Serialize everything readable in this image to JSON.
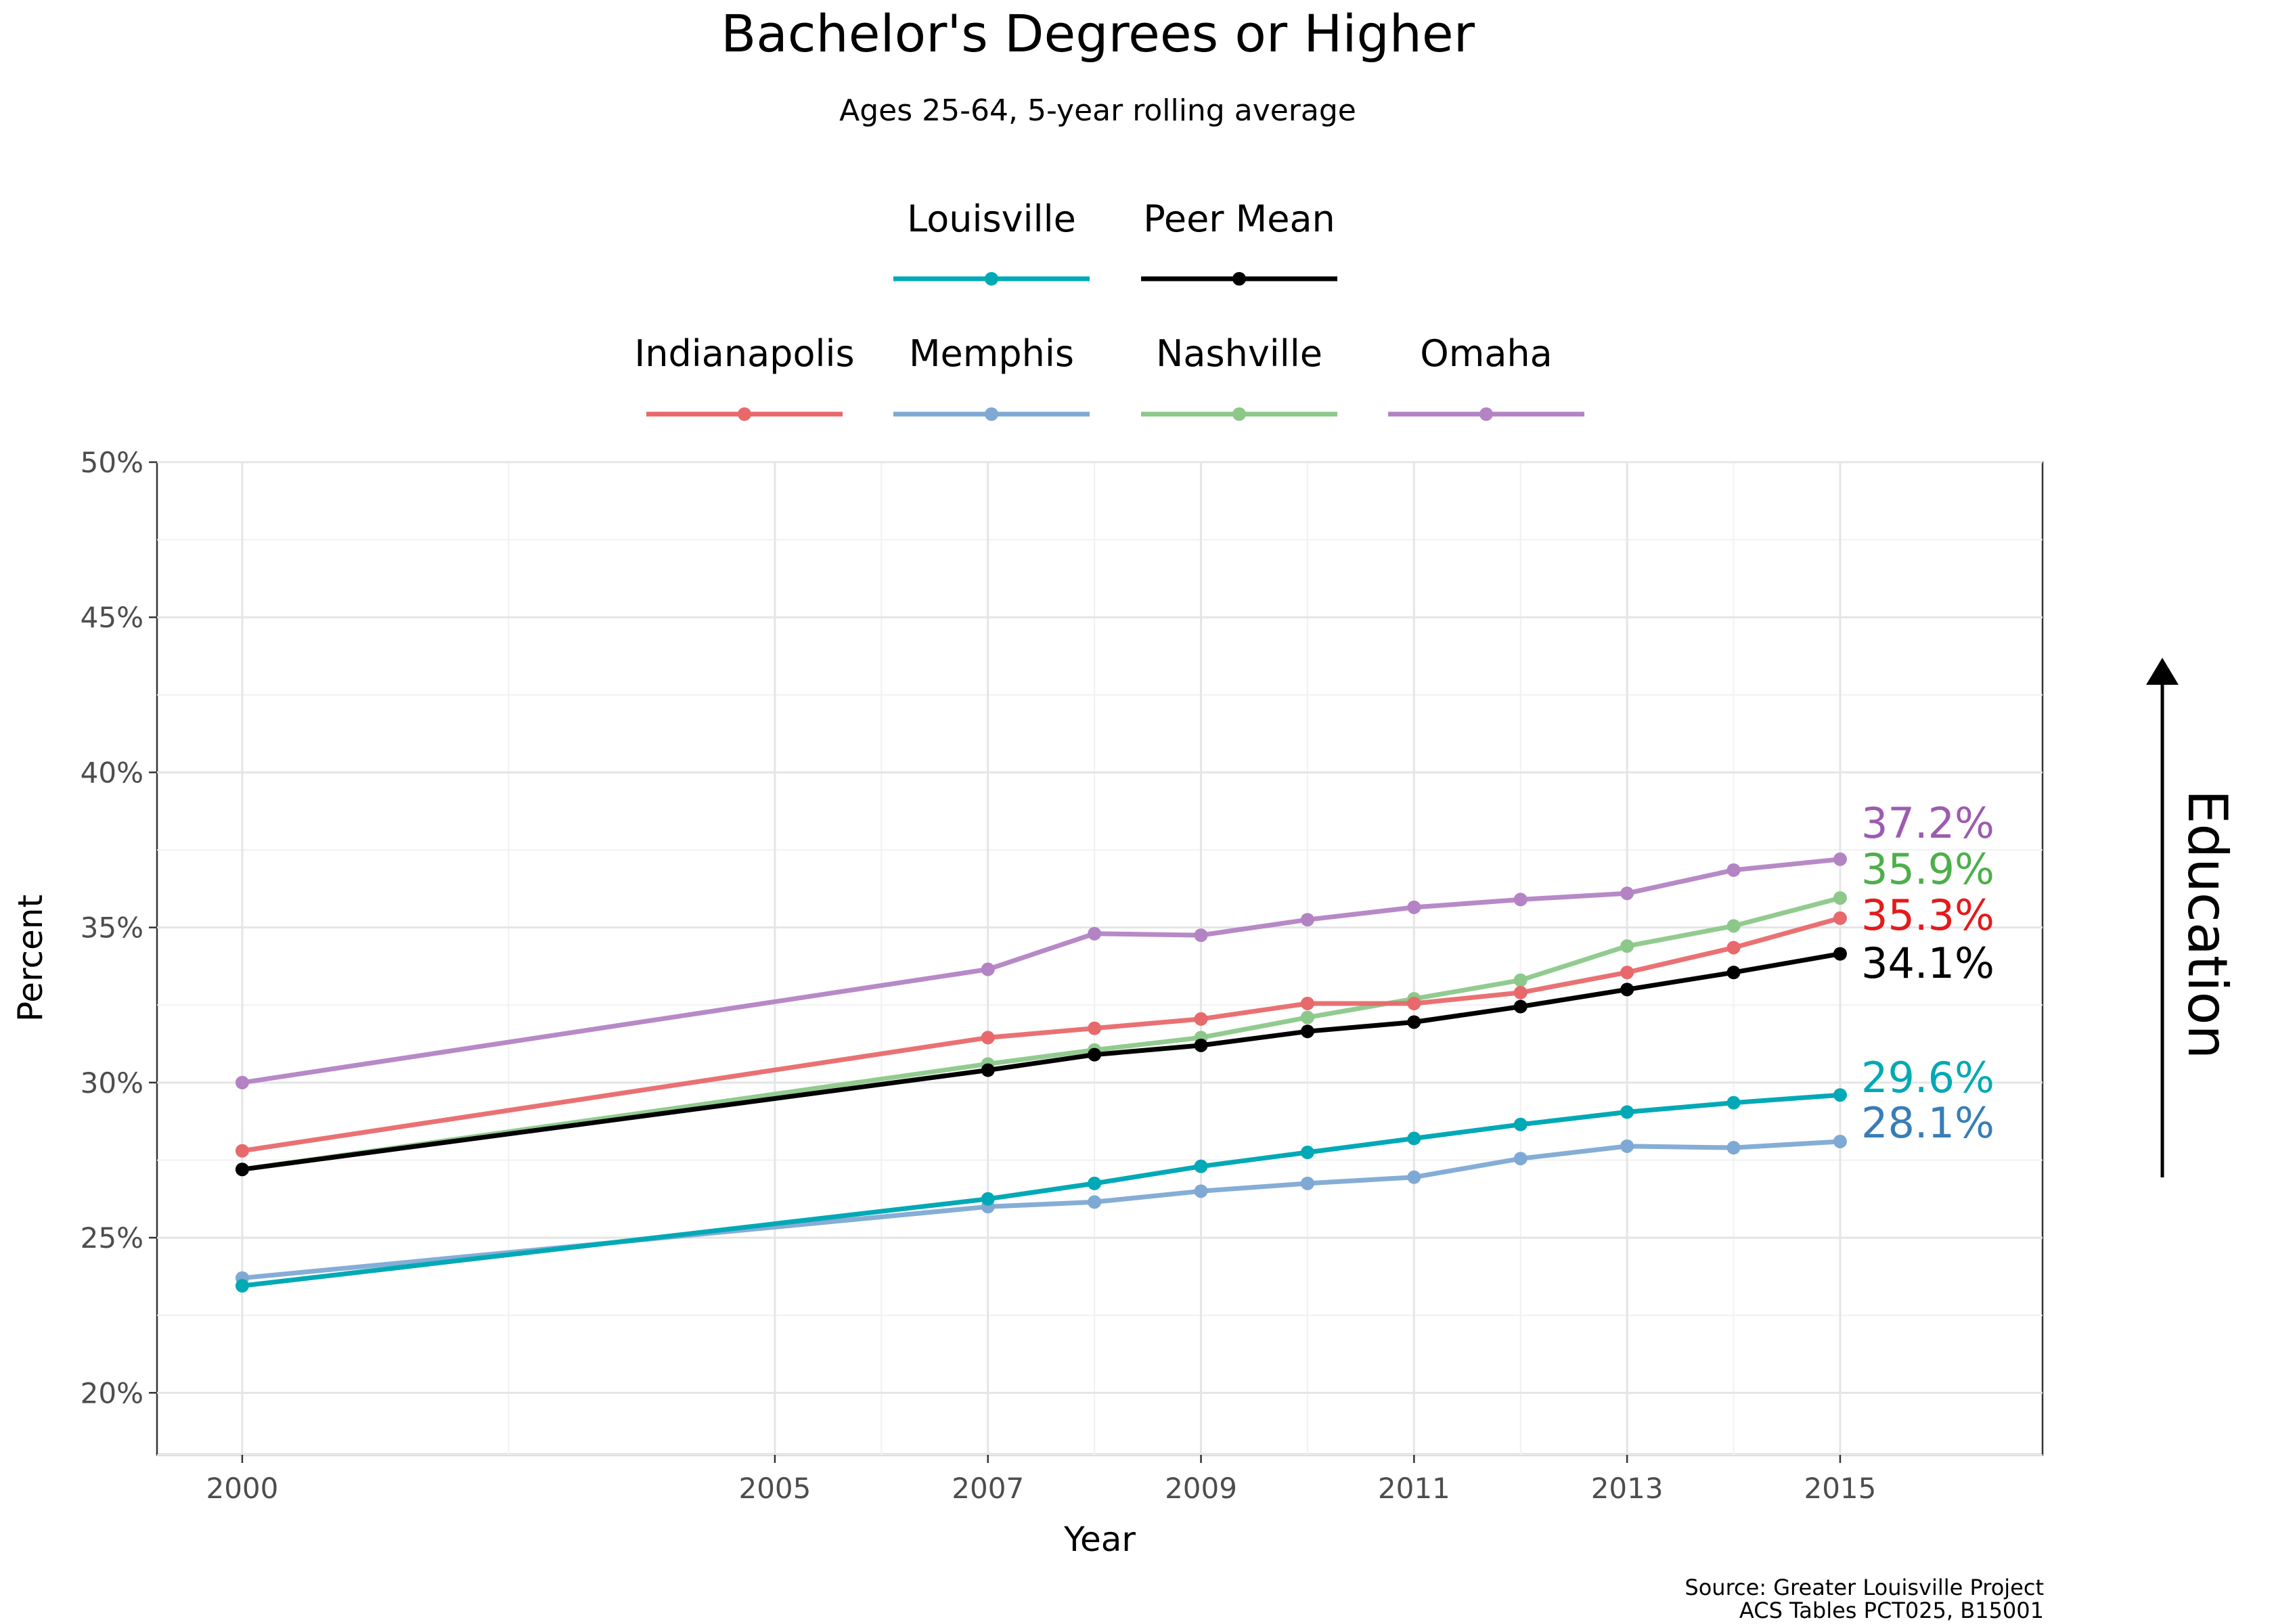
{
  "chart_data": {
    "type": "line",
    "title": "Bachelor's Degrees or Higher",
    "subtitle": "Ages 25-64, 5-year rolling average",
    "xlabel": "Year",
    "ylabel": "Percent",
    "x_ticks": [
      2000,
      2005,
      2007,
      2009,
      2011,
      2013,
      2015
    ],
    "xlim": [
      1999.2,
      2016.9
    ],
    "ylim": [
      18,
      50
    ],
    "y_ticks": [
      20,
      25,
      30,
      35,
      40,
      45,
      50
    ],
    "y_tick_labels": [
      "20%",
      "25%",
      "30%",
      "35%",
      "40%",
      "45%",
      "50%"
    ],
    "grid": true,
    "legend_position": "top",
    "legend_row1": [
      "Louisville",
      "Peer Mean"
    ],
    "legend_row2": [
      "Indianapolis",
      "Memphis",
      "Nashville",
      "Omaha"
    ],
    "x": [
      2000,
      2007,
      2008,
      2009,
      2010,
      2011,
      2012,
      2013,
      2014,
      2015
    ],
    "series": [
      {
        "name": "Omaha",
        "color": "#b383c4",
        "label_color": "#9c5bb0",
        "end_label": "37.2%",
        "values": [
          30.0,
          33.65,
          34.8,
          34.75,
          35.25,
          35.65,
          35.9,
          36.1,
          36.85,
          37.2
        ]
      },
      {
        "name": "Nashville",
        "color": "#8cc88a",
        "label_color": "#4daf4a",
        "end_label": "35.9%",
        "values": [
          27.2,
          30.6,
          31.05,
          31.45,
          32.1,
          32.7,
          33.3,
          34.4,
          35.05,
          35.95
        ]
      },
      {
        "name": "Indianapolis",
        "color": "#e8696b",
        "label_color": "#e41a1c",
        "end_label": "35.3%",
        "values": [
          27.8,
          31.45,
          31.75,
          32.05,
          32.55,
          32.55,
          32.9,
          33.55,
          34.35,
          35.3
        ]
      },
      {
        "name": "Peer Mean",
        "color": "#000000",
        "label_color": "#000000",
        "end_label": "34.1%",
        "values": [
          27.2,
          30.4,
          30.9,
          31.2,
          31.65,
          31.95,
          32.45,
          33.0,
          33.55,
          34.15
        ]
      },
      {
        "name": "Memphis",
        "color": "#7ea9d4",
        "label_color": "#377eb8",
        "end_label": "28.1%",
        "values": [
          23.7,
          26.0,
          26.15,
          26.5,
          26.75,
          26.95,
          27.55,
          27.95,
          27.9,
          28.1
        ]
      },
      {
        "name": "Louisville",
        "color": "#00a9b5",
        "label_color": "#00a9b5",
        "end_label": "29.6%",
        "values": [
          23.45,
          26.25,
          26.75,
          27.3,
          27.75,
          28.2,
          28.65,
          29.05,
          29.35,
          29.6
        ]
      }
    ],
    "arrow_label": "Education",
    "source_lines": [
      "Source: Greater Louisville Project",
      "ACS Tables PCT025, B15001"
    ]
  }
}
